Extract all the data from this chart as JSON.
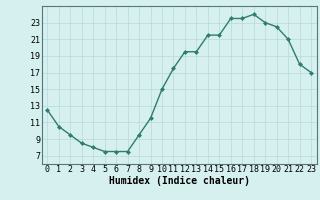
{
  "x": [
    0,
    1,
    2,
    3,
    4,
    5,
    6,
    7,
    8,
    9,
    10,
    11,
    12,
    13,
    14,
    15,
    16,
    17,
    18,
    19,
    20,
    21,
    22,
    23
  ],
  "y": [
    12.5,
    10.5,
    9.5,
    8.5,
    8.0,
    7.5,
    7.5,
    7.5,
    9.5,
    11.5,
    15.0,
    17.5,
    19.5,
    19.5,
    21.5,
    21.5,
    23.5,
    23.5,
    24.0,
    23.0,
    22.5,
    21.0,
    18.0,
    17.0
  ],
  "line_color": "#2e7d6e",
  "marker": "D",
  "marker_size": 2,
  "bg_color": "#d6f0f0",
  "grid_color": "#b8d8d8",
  "xlabel": "Humidex (Indice chaleur)",
  "xlim": [
    -0.5,
    23.5
  ],
  "ylim": [
    6,
    25
  ],
  "yticks": [
    7,
    9,
    11,
    13,
    15,
    17,
    19,
    21,
    23
  ],
  "xtick_labels": [
    "0",
    "1",
    "2",
    "3",
    "4",
    "5",
    "6",
    "7",
    "8",
    "9",
    "10",
    "11",
    "12",
    "13",
    "14",
    "15",
    "16",
    "17",
    "18",
    "19",
    "20",
    "21",
    "22",
    "23"
  ],
  "axis_fontsize": 6.5,
  "tick_fontsize": 6.0,
  "xlabel_fontsize": 7.0
}
